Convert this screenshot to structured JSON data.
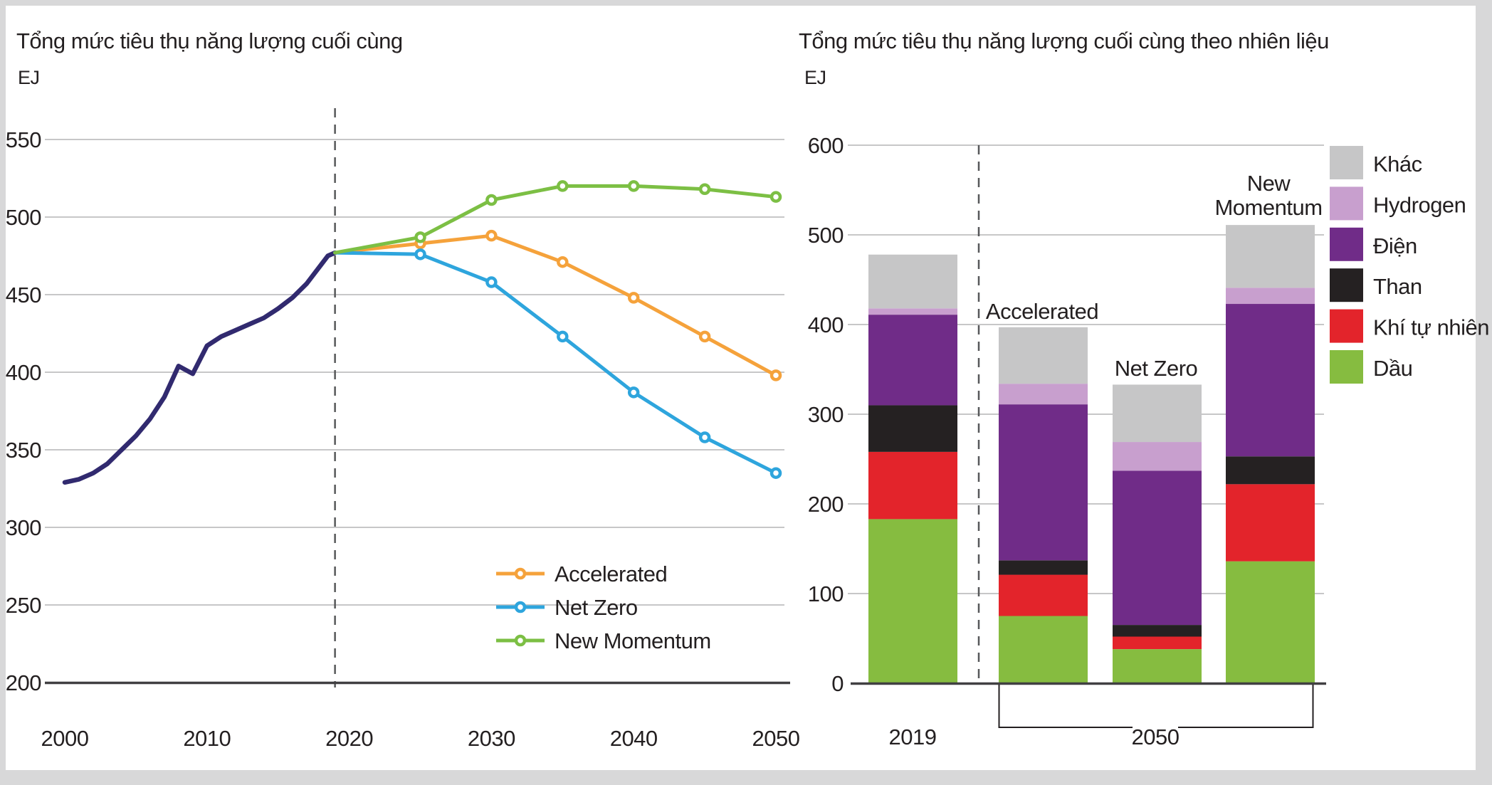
{
  "page": {
    "background_color": "#ffffff",
    "frame_color": "#d8d8d9",
    "text_color": "#231f20",
    "grid_color": "#c7c7c8",
    "axis_color": "#414042",
    "divider_color": "#57585a"
  },
  "chart_data": [
    {
      "type": "line",
      "title": "Tổng mức tiêu thụ năng lượng cuối cùng",
      "unit_label": "EJ",
      "ylim": [
        200,
        550
      ],
      "yticks": [
        550,
        500,
        450,
        400,
        350,
        300,
        250,
        200
      ],
      "xticks": [
        2000,
        2010,
        2020,
        2030,
        2040,
        2050
      ],
      "grid": true,
      "divider_year": 2019,
      "history": {
        "color": "#312A6F",
        "points": [
          [
            2000,
            329
          ],
          [
            2001,
            331
          ],
          [
            2002,
            335
          ],
          [
            2003,
            341
          ],
          [
            2004,
            350
          ],
          [
            2005,
            359
          ],
          [
            2006,
            370
          ],
          [
            2007,
            384
          ],
          [
            2008,
            404
          ],
          [
            2009,
            399
          ],
          [
            2010,
            417
          ],
          [
            2011,
            423
          ],
          [
            2012,
            427
          ],
          [
            2013,
            431
          ],
          [
            2014,
            435
          ],
          [
            2015,
            441
          ],
          [
            2016,
            448
          ],
          [
            2017,
            457
          ],
          [
            2018,
            469
          ],
          [
            2018.5,
            475
          ],
          [
            2019,
            477
          ]
        ]
      },
      "series": [
        {
          "name": "Accelerated",
          "color": "#F5A23B",
          "years": [
            2019,
            2025,
            2030,
            2035,
            2040,
            2045,
            2050
          ],
          "values": [
            477,
            483,
            488,
            471,
            448,
            423,
            398
          ]
        },
        {
          "name": "Net Zero",
          "color": "#2EA5DD",
          "years": [
            2019,
            2025,
            2030,
            2035,
            2040,
            2045,
            2050
          ],
          "values": [
            477,
            476,
            458,
            423,
            387,
            358,
            335
          ]
        },
        {
          "name": "New Momentum",
          "color": "#7CBF44",
          "years": [
            2019,
            2025,
            2030,
            2035,
            2040,
            2045,
            2050
          ],
          "values": [
            477,
            487,
            511,
            520,
            520,
            518,
            513
          ]
        }
      ],
      "legend_position": "inside-bottom"
    },
    {
      "type": "stacked-bar",
      "title": "Tổng mức tiêu thụ năng lượng cuối cùng theo nhiên liệu",
      "unit_label": "EJ",
      "ylim": [
        0,
        600
      ],
      "yticks": [
        600,
        500,
        400,
        300,
        200,
        100,
        0
      ],
      "categories": [
        "2019",
        "Accelerated",
        "Net Zero",
        "New Momentum"
      ],
      "group_bracket_label": "2050",
      "series": [
        {
          "name": "Dầu",
          "color": "#86BC40",
          "values": [
            183,
            75,
            38,
            136
          ]
        },
        {
          "name": "Khí tự nhiên",
          "color": "#E3242B",
          "values": [
            75,
            46,
            14,
            86
          ]
        },
        {
          "name": "Than",
          "color": "#252122",
          "values": [
            52,
            16,
            13,
            31
          ]
        },
        {
          "name": "Điện",
          "color": "#702C88",
          "values": [
            101,
            174,
            172,
            170
          ]
        },
        {
          "name": "Hydrogen",
          "color": "#C89FCE",
          "values": [
            7,
            23,
            32,
            18
          ]
        },
        {
          "name": "Khác",
          "color": "#C6C6C7",
          "values": [
            60,
            63,
            64,
            70
          ]
        }
      ],
      "totals": [
        478,
        397,
        333,
        511
      ],
      "legend_order_top_to_bottom": [
        "Khác",
        "Hydrogen",
        "Điện",
        "Than",
        "Khí tự nhiên",
        "Dầu"
      ]
    }
  ]
}
